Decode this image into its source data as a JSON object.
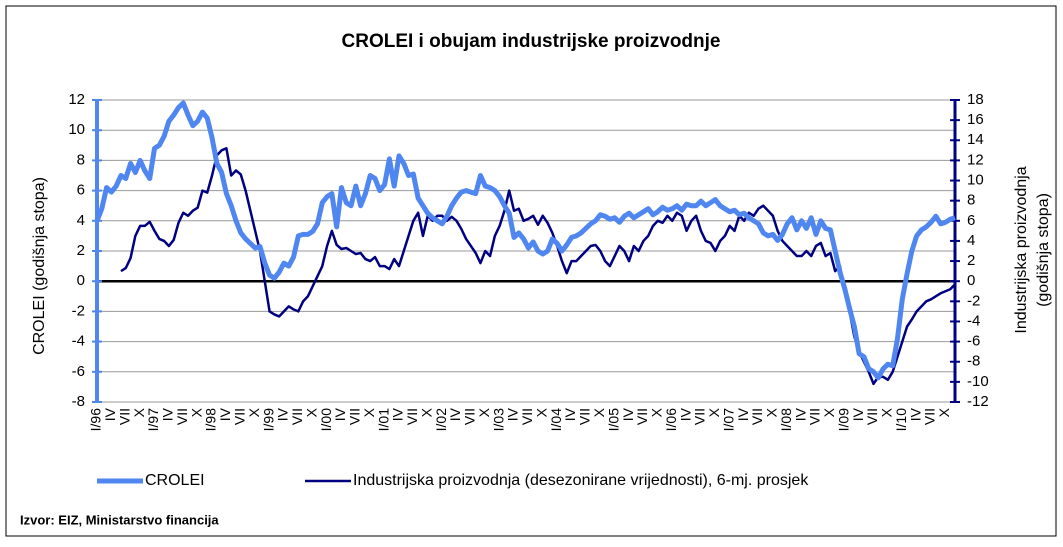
{
  "chart_data": {
    "type": "line",
    "title": "CROLEI i obujam industrijske proizvodnje",
    "ylabel": "CROLEI (godišnja stopa)",
    "y2label": [
      "Industrijska proizvodnja",
      "(godišnja stopa)"
    ],
    "source": "Izvor: EIZ, Ministarstvo financija",
    "categories": [
      "I/96",
      null,
      null,
      "IV",
      null,
      null,
      "VII",
      null,
      null,
      "X",
      null,
      null,
      "I/97",
      null,
      null,
      "IV",
      null,
      null,
      "VII",
      null,
      null,
      "X",
      null,
      null,
      "I/98",
      null,
      null,
      "IV",
      null,
      null,
      "VII",
      null,
      null,
      "X",
      null,
      null,
      "I/99",
      null,
      null,
      "IV",
      null,
      null,
      "VII",
      null,
      null,
      "X",
      null,
      null,
      "I/00",
      null,
      null,
      "IV",
      null,
      null,
      "VII",
      null,
      null,
      "X",
      null,
      null,
      "I/01",
      null,
      null,
      "IV",
      null,
      null,
      "VII",
      null,
      null,
      "X",
      null,
      null,
      "I/02",
      null,
      null,
      "IV",
      null,
      null,
      "VII",
      null,
      null,
      "X",
      null,
      null,
      "I/03",
      null,
      null,
      "IV",
      null,
      null,
      "VII",
      null,
      null,
      "X",
      null,
      null,
      "I/04",
      null,
      null,
      "IV",
      null,
      null,
      "VII",
      null,
      null,
      "X",
      null,
      null,
      "I/05",
      null,
      null,
      "IV",
      null,
      null,
      "VII",
      null,
      null,
      "X",
      null,
      null,
      "I/06",
      null,
      null,
      "IV",
      null,
      null,
      "VII",
      null,
      null,
      "X",
      null,
      null,
      "I/07",
      null,
      null,
      "IV",
      null,
      null,
      "VII",
      null,
      null,
      "X",
      null,
      null,
      "I/08",
      null,
      null,
      "IV",
      null,
      null,
      "VII",
      null,
      null,
      "X",
      null,
      null,
      "I/09",
      null,
      null,
      "IV",
      null,
      null,
      "VII",
      null,
      null,
      "X",
      null,
      null,
      "I/10",
      null,
      null,
      "IV",
      null,
      null,
      "VII",
      null,
      null,
      "X",
      null,
      null
    ],
    "series": [
      {
        "name": "CROLEI",
        "color": "#4f86f0",
        "values": [
          4.0,
          4.8,
          6.2,
          5.9,
          6.3,
          7.0,
          6.8,
          7.8,
          7.2,
          8.0,
          7.3,
          6.8,
          8.8,
          9.0,
          9.6,
          10.6,
          11.0,
          11.5,
          11.8,
          11.0,
          10.3,
          10.6,
          11.2,
          10.8,
          9.5,
          7.8,
          7.2,
          5.8,
          5.0,
          4.0,
          3.2,
          2.8,
          2.5,
          2.2,
          2.3,
          1.2,
          0.4,
          0.2,
          0.6,
          1.2,
          1.0,
          1.6,
          3.0,
          3.1,
          3.1,
          3.3,
          3.8,
          5.2,
          5.6,
          5.8,
          3.6,
          6.2,
          5.2,
          5.0,
          6.3,
          5.0,
          5.8,
          7.0,
          6.8,
          6.0,
          6.4,
          8.1,
          6.3,
          8.3,
          7.8,
          7.0,
          7.1,
          5.5,
          5.0,
          4.5,
          4.2,
          4.0,
          3.8,
          4.3,
          5.0,
          5.5,
          5.9,
          6.0,
          5.9,
          5.8,
          7.0,
          6.3,
          6.2,
          6.0,
          5.6,
          5.0,
          4.5,
          2.9,
          3.2,
          2.8,
          2.2,
          2.6,
          2.0,
          1.8,
          2.0,
          2.8,
          2.5,
          2.0,
          2.4,
          2.9,
          3.0,
          3.2,
          3.5,
          3.8,
          4.0,
          4.4,
          4.3,
          4.1,
          4.2,
          3.9,
          4.3,
          4.5,
          4.2,
          4.4,
          4.6,
          4.8,
          4.4,
          4.6,
          4.9,
          4.7,
          4.8,
          5.0,
          4.7,
          5.1,
          5.0,
          5.0,
          5.3,
          5.0,
          5.2,
          5.4,
          5.0,
          4.8,
          4.6,
          4.7,
          4.4,
          4.5,
          4.2,
          4.0,
          3.8,
          3.2,
          3.0,
          3.1,
          2.7,
          3.1,
          3.8,
          4.2,
          3.4,
          4.0,
          3.5,
          4.2,
          3.1,
          4.0,
          3.5,
          3.4,
          2.0,
          0.6,
          -0.5,
          -1.8,
          -3.0,
          -4.8,
          -5.0,
          -5.8,
          -6.0,
          -6.4,
          -5.8,
          -5.5,
          -5.6,
          -3.8,
          -1.2,
          0.5,
          2.0,
          3.0,
          3.4,
          3.6,
          3.9,
          4.3,
          3.8,
          3.9,
          4.1,
          4.2
        ]
      },
      {
        "name": "Industrijska proizvodnja (desezonirane vrijednosti), 6-mj. prosjek",
        "color": "#000080",
        "axis": "y2",
        "values": [
          null,
          null,
          null,
          null,
          null,
          1.0,
          1.3,
          2.3,
          4.5,
          5.5,
          5.5,
          5.9,
          5.0,
          4.2,
          4.0,
          3.5,
          4.1,
          5.8,
          6.8,
          6.5,
          7.0,
          7.3,
          9.0,
          8.8,
          10.5,
          12.5,
          13.0,
          13.2,
          10.5,
          11.0,
          10.6,
          9.0,
          7.0,
          5.0,
          3.0,
          0.0,
          -3.0,
          -3.3,
          -3.5,
          -3.0,
          -2.5,
          -2.8,
          -3.0,
          -2.0,
          -1.5,
          -0.5,
          0.5,
          1.5,
          3.5,
          5.0,
          3.6,
          3.2,
          3.3,
          3.0,
          2.7,
          2.8,
          2.2,
          2.0,
          2.4,
          1.5,
          1.5,
          1.2,
          2.2,
          1.5,
          3.0,
          4.5,
          6.0,
          6.8,
          4.5,
          6.5,
          6.0,
          6.5,
          6.5,
          6.0,
          6.4,
          6.0,
          5.2,
          4.2,
          3.5,
          2.8,
          1.8,
          3.0,
          2.5,
          4.5,
          5.5,
          7.0,
          9.0,
          7.0,
          7.2,
          6.0,
          6.2,
          6.5,
          5.6,
          6.5,
          5.8,
          4.8,
          3.5,
          2.0,
          0.8,
          2.0,
          2.0,
          2.5,
          3.0,
          3.5,
          3.6,
          3.0,
          2.0,
          1.5,
          2.5,
          3.5,
          3.0,
          2.0,
          3.5,
          3.0,
          4.0,
          4.5,
          5.5,
          6.0,
          5.8,
          6.5,
          6.0,
          6.8,
          6.5,
          5.0,
          6.0,
          6.5,
          5.0,
          4.0,
          3.8,
          3.0,
          4.0,
          4.5,
          5.5,
          5.0,
          6.5,
          6.0,
          6.8,
          6.5,
          7.2,
          7.5,
          7.0,
          6.5,
          5.0,
          4.0,
          3.5,
          3.0,
          2.5,
          2.5,
          3.0,
          2.5,
          3.5,
          3.8,
          2.5,
          2.8,
          1.0,
          1.5,
          -1.0,
          -3.0,
          -5.5,
          -7.0,
          -8.0,
          -9.0,
          -10.2,
          -9.5,
          -9.5,
          -9.8,
          -9.0,
          -7.5,
          -6.0,
          -4.5,
          -3.8,
          -3.0,
          -2.5,
          -2.0,
          -1.8,
          -1.5,
          -1.2,
          -1.0,
          -0.8,
          -0.3
        ]
      }
    ],
    "ylim": [
      -8,
      12
    ],
    "yticks": [
      -8,
      -6,
      -4,
      -2,
      0,
      2,
      4,
      6,
      8,
      10,
      12
    ],
    "y2lim": [
      -12,
      18
    ],
    "y2ticks": [
      -12,
      -10,
      -8,
      -6,
      -4,
      -2,
      0,
      2,
      4,
      6,
      8,
      10,
      12,
      14,
      16,
      18
    ],
    "grid": true,
    "legend": "bottom"
  }
}
